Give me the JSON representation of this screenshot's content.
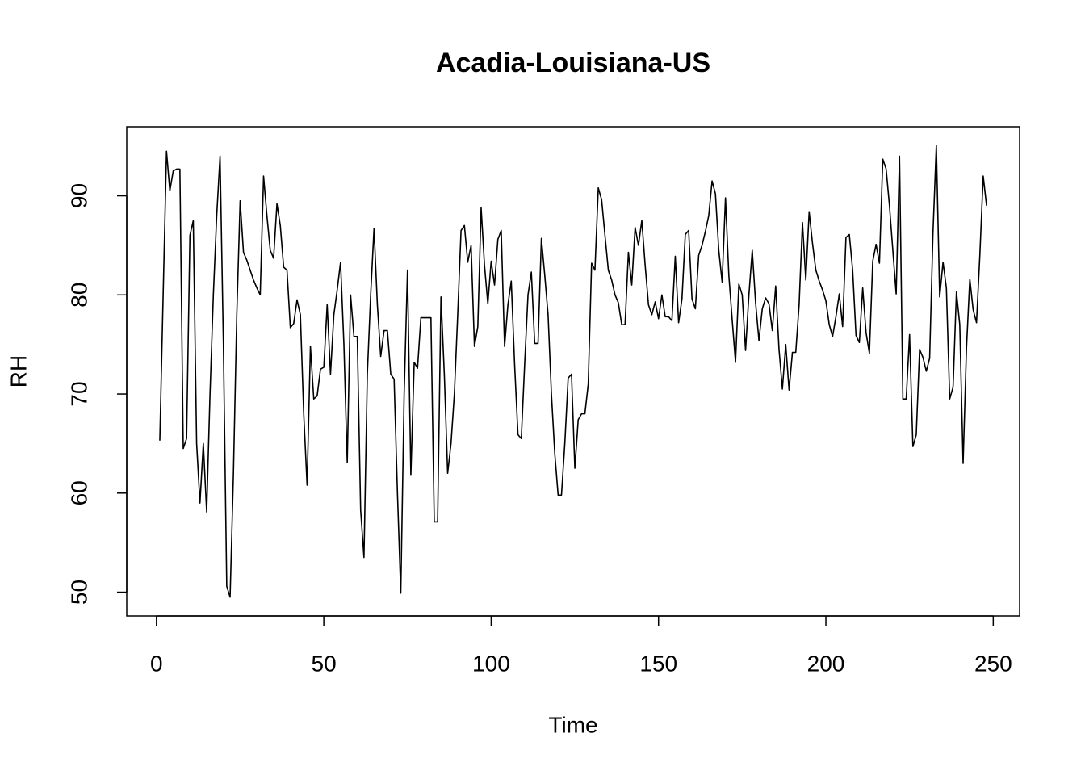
{
  "chart_data": {
    "type": "line",
    "title": "Acadia-Louisiana-US",
    "xlabel": "Time",
    "ylabel": "RH",
    "color": "#000000",
    "x": [
      1,
      2,
      3,
      4,
      5,
      6,
      7,
      8,
      9,
      10,
      11,
      12,
      13,
      14,
      15,
      16,
      17,
      18,
      19,
      20,
      21,
      22,
      23,
      24,
      25,
      26,
      27,
      28,
      29,
      30,
      31,
      32,
      33,
      34,
      35,
      36,
      37,
      38,
      39,
      40,
      41,
      42,
      43,
      44,
      45,
      46,
      47,
      48,
      49,
      50,
      51,
      52,
      53,
      54,
      55,
      56,
      57,
      58,
      59,
      60,
      61,
      62,
      63,
      64,
      65,
      66,
      67,
      68,
      69,
      70,
      71,
      72,
      73,
      74,
      75,
      76,
      77,
      78,
      79,
      80,
      81,
      82,
      83,
      84,
      85,
      86,
      87,
      88,
      89,
      90,
      91,
      92,
      93,
      94,
      95,
      96,
      97,
      98,
      99,
      100,
      101,
      102,
      103,
      104,
      105,
      106,
      107,
      108,
      109,
      110,
      111,
      112,
      113,
      114,
      115,
      116,
      117,
      118,
      119,
      120,
      121,
      122,
      123,
      124,
      125,
      126,
      127,
      128,
      129,
      130,
      131,
      132,
      133,
      134,
      135,
      136,
      137,
      138,
      139,
      140,
      141,
      142,
      143,
      144,
      145,
      146,
      147,
      148,
      149,
      150,
      151,
      152,
      153,
      154,
      155,
      156,
      157,
      158,
      159,
      160,
      161,
      162,
      163,
      164,
      165,
      166,
      167,
      168,
      169,
      170,
      171,
      172,
      173,
      174,
      175,
      176,
      177,
      178,
      179,
      180,
      181,
      182,
      183,
      184,
      185,
      186,
      187,
      188,
      189,
      190,
      191,
      192,
      193,
      194,
      195,
      196,
      197,
      198,
      199,
      200,
      201,
      202,
      203,
      204,
      205,
      206,
      207,
      208,
      209,
      210,
      211,
      212,
      213,
      214,
      215,
      216,
      217,
      218,
      219,
      220,
      221,
      222,
      223,
      224,
      225,
      226,
      227,
      228,
      229,
      230,
      231,
      232,
      233,
      234,
      235,
      236,
      237,
      238,
      239,
      240,
      241,
      242,
      243,
      244,
      245,
      246,
      247,
      248
    ],
    "values": [
      65.3,
      80,
      94.5,
      90.5,
      92.5,
      92.7,
      92.7,
      64.5,
      65.5,
      86,
      87.5,
      65,
      59,
      65,
      58.1,
      70,
      80,
      88,
      94,
      75,
      50.6,
      49.5,
      62,
      78,
      89.5,
      84.3,
      83.5,
      82.5,
      81.5,
      80.7,
      80,
      92,
      88,
      84.5,
      83.7,
      89.2,
      87,
      82.8,
      82.5,
      76.7,
      77.1,
      79.5,
      78,
      68,
      60.8,
      74.8,
      69.5,
      69.8,
      72.5,
      72.7,
      79,
      72,
      78,
      80.5,
      83.3,
      75,
      63.1,
      80,
      75.8,
      75.8,
      58.3,
      53.5,
      72,
      80,
      86.7,
      79,
      73.8,
      76.4,
      76.4,
      72,
      71.5,
      60,
      49.9,
      70,
      82.5,
      61.8,
      73.2,
      72.6,
      77.7,
      77.7,
      77.7,
      77.7,
      57.1,
      57.1,
      79.8,
      72,
      62,
      65,
      70,
      78,
      86.5,
      87,
      83.3,
      85,
      74.8,
      76.8,
      88.8,
      83,
      79.1,
      83.4,
      81,
      85.6,
      86.5,
      74.8,
      79,
      81.4,
      73,
      65.9,
      65.5,
      73,
      80,
      82.3,
      75.1,
      75.1,
      85.7,
      82,
      78,
      70,
      64,
      59.8,
      59.8,
      65,
      71.6,
      72,
      62.5,
      67.4,
      68,
      68,
      71,
      83.2,
      82.5,
      90.8,
      89.6,
      86,
      82.5,
      81.5,
      80,
      79.2,
      77,
      77,
      84.3,
      81,
      86.8,
      85,
      87.5,
      83,
      79,
      78,
      79.3,
      77.6,
      80,
      77.8,
      77.8,
      77.4,
      83.9,
      77.2,
      79.6,
      86.1,
      86.5,
      79.6,
      78.6,
      84,
      85,
      86.4,
      88,
      91.5,
      90.2,
      84.5,
      81.3,
      89.8,
      82,
      77.5,
      73.2,
      81.1,
      80,
      74.4,
      80,
      84.5,
      79.2,
      75.4,
      78.6,
      79.7,
      79.1,
      76.4,
      80.9,
      74.5,
      70.5,
      75,
      70.4,
      74.2,
      74.2,
      79,
      87.3,
      81.5,
      88.4,
      85.2,
      82.5,
      81.4,
      80.5,
      79.4,
      77,
      75.8,
      77.8,
      80.1,
      76.8,
      85.8,
      86.1,
      82.5,
      75.9,
      75.2,
      80.7,
      76.2,
      74.1,
      83.4,
      85.1,
      83.2,
      93.7,
      92.7,
      89,
      84.5,
      80.1,
      94,
      69.5,
      69.5,
      76,
      64.7,
      65.9,
      74.5,
      73.7,
      72.3,
      73.6,
      86.3,
      95.1,
      79.8,
      83.3,
      80.7,
      69.5,
      70.7,
      80.3,
      77,
      63,
      74.6,
      81.6,
      78.5,
      77.2,
      84,
      92,
      89
    ],
    "xlim": [
      -8.88,
      257.88
    ],
    "ylim": [
      47.6,
      96.97
    ],
    "xticks": [
      0,
      50,
      100,
      150,
      200,
      250
    ],
    "yticks": [
      50,
      60,
      70,
      80,
      90
    ]
  }
}
